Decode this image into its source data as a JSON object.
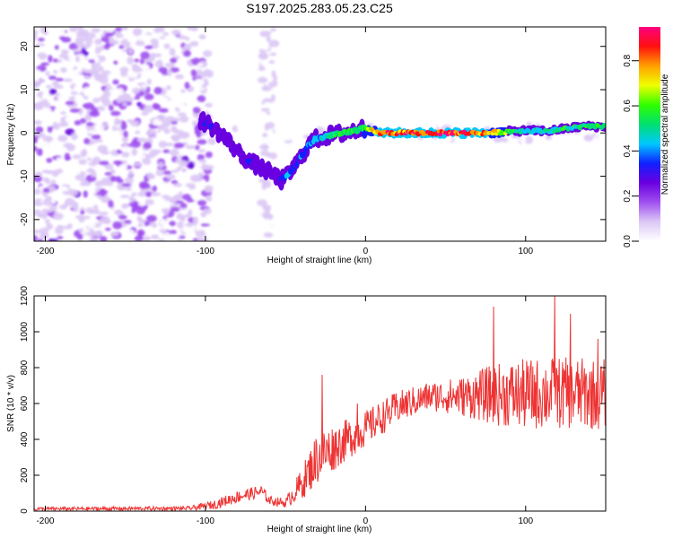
{
  "title": "S197.2025.283.05.23.C25",
  "chart_data": [
    {
      "type": "heatmap",
      "xlabel": "Height of straight line (km)",
      "ylabel": "Frequency (Hz)",
      "xlim": [
        -207,
        150
      ],
      "ylim": [
        -25,
        24.5
      ],
      "xticks": [
        -200,
        -100,
        0,
        100
      ],
      "yticks": [
        -20,
        -10,
        0,
        10,
        20
      ],
      "colorbar": {
        "label": "Normalized spectral amplitude",
        "range": [
          0,
          0.95
        ],
        "ticks": [
          "0.0",
          "0.2",
          "0.4",
          "0.6",
          "0.8"
        ],
        "tick_values": [
          0,
          0.2,
          0.4,
          0.6,
          0.8
        ],
        "colors": [
          "#ffffff",
          "#dcc8f5",
          "#a050f0",
          "#6a00e0",
          "#1020ff",
          "#00c8ff",
          "#00e070",
          "#30ff00",
          "#f0ff00",
          "#ffa000",
          "#ff1010",
          "#ff0080"
        ]
      },
      "ridge": [
        {
          "x": -103,
          "y": 3,
          "a": 0.3
        },
        {
          "x": -98,
          "y": 2,
          "a": 0.35
        },
        {
          "x": -93,
          "y": 0.5,
          "a": 0.3
        },
        {
          "x": -88,
          "y": -1,
          "a": 0.3
        },
        {
          "x": -83,
          "y": -3,
          "a": 0.3
        },
        {
          "x": -78,
          "y": -5,
          "a": 0.3
        },
        {
          "x": -73,
          "y": -6.5,
          "a": 0.35
        },
        {
          "x": -68,
          "y": -7.5,
          "a": 0.3
        },
        {
          "x": -63,
          "y": -8.5,
          "a": 0.3
        },
        {
          "x": -58,
          "y": -9.5,
          "a": 0.3
        },
        {
          "x": -53,
          "y": -11,
          "a": 0.35
        },
        {
          "x": -49,
          "y": -10,
          "a": 0.45
        },
        {
          "x": -45,
          "y": -8,
          "a": 0.35
        },
        {
          "x": -40,
          "y": -5.5,
          "a": 0.4
        },
        {
          "x": -36,
          "y": -3,
          "a": 0.4
        },
        {
          "x": -32,
          "y": -1.5,
          "a": 0.45
        },
        {
          "x": -27,
          "y": -1,
          "a": 0.5
        },
        {
          "x": -22,
          "y": -0.5,
          "a": 0.6
        },
        {
          "x": -17,
          "y": -0.2,
          "a": 0.6
        },
        {
          "x": -12,
          "y": 0,
          "a": 0.65
        },
        {
          "x": -7,
          "y": 0.5,
          "a": 0.6
        },
        {
          "x": -3,
          "y": 1,
          "a": 0.6
        },
        {
          "x": 2,
          "y": 0.8,
          "a": 0.75
        },
        {
          "x": 8,
          "y": 0,
          "a": 0.9
        },
        {
          "x": 20,
          "y": 0,
          "a": 0.95
        },
        {
          "x": 40,
          "y": 0,
          "a": 0.95
        },
        {
          "x": 60,
          "y": 0,
          "a": 0.95
        },
        {
          "x": 75,
          "y": 0,
          "a": 0.9
        },
        {
          "x": 85,
          "y": 0.2,
          "a": 0.75
        },
        {
          "x": 95,
          "y": 0.5,
          "a": 0.55
        },
        {
          "x": 105,
          "y": 0.5,
          "a": 0.5
        },
        {
          "x": 115,
          "y": 0.5,
          "a": 0.55
        },
        {
          "x": 125,
          "y": 1,
          "a": 0.6
        },
        {
          "x": 135,
          "y": 1.5,
          "a": 0.6
        },
        {
          "x": 145,
          "y": 1.5,
          "a": 0.65
        },
        {
          "x": 150,
          "y": 1.5,
          "a": 0.6
        }
      ]
    },
    {
      "type": "line",
      "xlabel": "Height of straight line (km)",
      "ylabel": "SNR (10 * v/v)",
      "xlim": [
        -207,
        150
      ],
      "ylim": [
        0,
        1200
      ],
      "xticks": [
        -200,
        -100,
        0,
        100
      ],
      "yticks": [
        0,
        200,
        400,
        600,
        800,
        1000,
        1200
      ],
      "color": "#ee3333",
      "envelope": [
        {
          "x": -207,
          "mean": 12,
          "amp": 10
        },
        {
          "x": -110,
          "mean": 15,
          "amp": 12
        },
        {
          "x": -95,
          "mean": 35,
          "amp": 25
        },
        {
          "x": -80,
          "mean": 80,
          "amp": 35
        },
        {
          "x": -65,
          "mean": 110,
          "amp": 35
        },
        {
          "x": -60,
          "mean": 60,
          "amp": 25
        },
        {
          "x": -50,
          "mean": 45,
          "amp": 25
        },
        {
          "x": -40,
          "mean": 150,
          "amp": 90
        },
        {
          "x": -30,
          "mean": 300,
          "amp": 150
        },
        {
          "x": -15,
          "mean": 380,
          "amp": 120
        },
        {
          "x": 0,
          "mean": 460,
          "amp": 100
        },
        {
          "x": 20,
          "mean": 580,
          "amp": 90
        },
        {
          "x": 40,
          "mean": 640,
          "amp": 80
        },
        {
          "x": 60,
          "mean": 640,
          "amp": 110
        },
        {
          "x": 80,
          "mean": 650,
          "amp": 170
        },
        {
          "x": 100,
          "mean": 650,
          "amp": 200
        },
        {
          "x": 120,
          "mean": 660,
          "amp": 200
        },
        {
          "x": 150,
          "mean": 650,
          "amp": 200
        }
      ],
      "spikes": [
        {
          "x": -27,
          "y": 760
        },
        {
          "x": -5,
          "y": 600
        },
        {
          "x": 80,
          "y": 1140
        },
        {
          "x": 118,
          "y": 1210
        },
        {
          "x": 128,
          "y": 1100
        },
        {
          "x": 145,
          "y": 960
        }
      ]
    }
  ]
}
